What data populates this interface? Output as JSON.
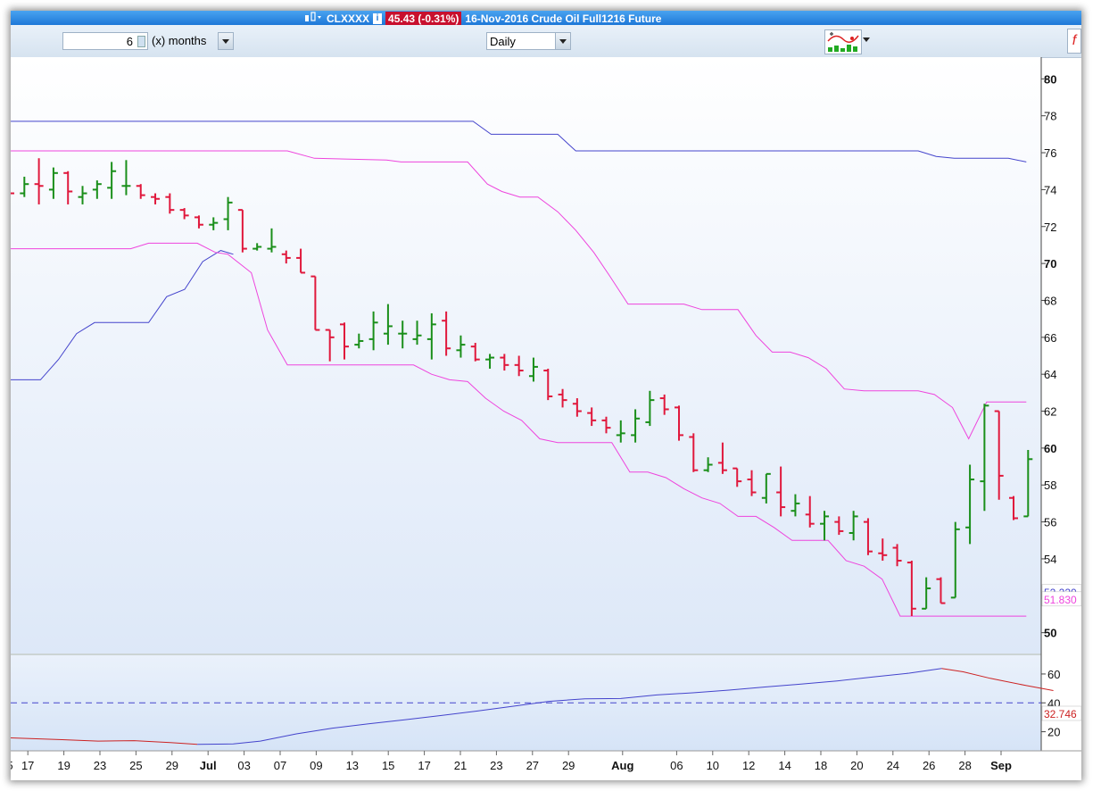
{
  "titlebar": {
    "symbol": "CLXXXX",
    "price_change": "45.43 (-0.31%)",
    "description": "16-Nov-2016 Crude Oil Full1216 Future"
  },
  "toolbar": {
    "period_value": "6",
    "period_unit": "(x) months",
    "interval": "Daily"
  },
  "colors": {
    "up": "#1a8f1a",
    "down": "#e0183c",
    "magenta": "#ee44dd",
    "blue": "#4444cc",
    "red_line": "#cc2222",
    "bg_top": "#ffffff",
    "bg_bottom": "#dde8f8"
  },
  "chart_data": [
    {
      "type": "ohlc",
      "y_ticks": [
        "80",
        "78",
        "76",
        "74",
        "72",
        "70",
        "68",
        "66",
        "64",
        "62",
        "60",
        "58",
        "56",
        "54",
        "50"
      ],
      "bold_ticks": [
        "80",
        "70",
        "60",
        "50"
      ],
      "ylim": [
        49.5,
        80.5
      ],
      "x_ticks": [
        {
          "label": "5",
          "i": 0
        },
        {
          "label": "17",
          "i": 1
        },
        {
          "label": "19",
          "i": 3
        },
        {
          "label": "23",
          "i": 5
        },
        {
          "label": "25",
          "i": 7
        },
        {
          "label": "29",
          "i": 9
        },
        {
          "label": "Jul",
          "i": 11,
          "bold": true
        },
        {
          "label": "03",
          "i": 13
        },
        {
          "label": "07",
          "i": 15
        },
        {
          "label": "09",
          "i": 17
        },
        {
          "label": "13",
          "i": 19
        },
        {
          "label": "15",
          "i": 21
        },
        {
          "label": "17",
          "i": 23
        },
        {
          "label": "21",
          "i": 25
        },
        {
          "label": "23",
          "i": 27
        },
        {
          "label": "27",
          "i": 29
        },
        {
          "label": "29",
          "i": 31
        },
        {
          "label": "Aug",
          "i": 34,
          "bold": true
        },
        {
          "label": "06",
          "i": 37
        },
        {
          "label": "10",
          "i": 39
        },
        {
          "label": "12",
          "i": 41
        },
        {
          "label": "14",
          "i": 43
        },
        {
          "label": "18",
          "i": 45
        },
        {
          "label": "20",
          "i": 47
        },
        {
          "label": "24",
          "i": 49
        },
        {
          "label": "26",
          "i": 51
        },
        {
          "label": "28",
          "i": 53
        },
        {
          "label": "Sep",
          "i": 55,
          "bold": true
        }
      ],
      "bars": [
        {
          "o": 73.9,
          "h": 74.1,
          "l": 73.7,
          "c": 73.8
        },
        {
          "o": 73.8,
          "h": 74.7,
          "l": 73.6,
          "c": 74.3
        },
        {
          "o": 74.3,
          "h": 75.7,
          "l": 73.2,
          "c": 74.2
        },
        {
          "o": 74.0,
          "h": 75.2,
          "l": 73.5,
          "c": 74.9
        },
        {
          "o": 74.9,
          "h": 75.0,
          "l": 73.2,
          "c": 73.9
        },
        {
          "o": 73.6,
          "h": 74.2,
          "l": 73.2,
          "c": 73.8
        },
        {
          "o": 74.0,
          "h": 74.5,
          "l": 73.5,
          "c": 74.3
        },
        {
          "o": 74.1,
          "h": 75.5,
          "l": 73.5,
          "c": 75.0
        },
        {
          "o": 74.2,
          "h": 75.6,
          "l": 73.7,
          "c": 74.2
        },
        {
          "o": 74.2,
          "h": 74.3,
          "l": 73.5,
          "c": 73.7
        },
        {
          "o": 73.6,
          "h": 73.8,
          "l": 73.2,
          "c": 73.5
        },
        {
          "o": 73.6,
          "h": 73.8,
          "l": 72.7,
          "c": 72.9
        },
        {
          "o": 72.9,
          "h": 73.0,
          "l": 72.4,
          "c": 72.6
        },
        {
          "o": 72.5,
          "h": 72.6,
          "l": 71.9,
          "c": 72.1
        },
        {
          "o": 72.1,
          "h": 72.5,
          "l": 71.8,
          "c": 72.2
        },
        {
          "o": 72.4,
          "h": 73.6,
          "l": 71.8,
          "c": 73.3
        },
        {
          "o": 72.9,
          "h": 72.9,
          "l": 70.6,
          "c": 70.8
        },
        {
          "o": 70.8,
          "h": 71.1,
          "l": 70.7,
          "c": 70.9
        },
        {
          "o": 70.8,
          "h": 71.9,
          "l": 70.6,
          "c": 70.9
        },
        {
          "o": 70.5,
          "h": 70.7,
          "l": 70.0,
          "c": 70.3
        },
        {
          "o": 70.3,
          "h": 70.8,
          "l": 69.5,
          "c": 69.5
        },
        {
          "o": 69.3,
          "h": 69.3,
          "l": 66.4,
          "c": 66.4
        },
        {
          "o": 66.4,
          "h": 66.4,
          "l": 64.7,
          "c": 66.0
        },
        {
          "o": 66.7,
          "h": 66.8,
          "l": 64.8,
          "c": 65.5
        },
        {
          "o": 65.6,
          "h": 66.2,
          "l": 65.4,
          "c": 65.8
        },
        {
          "o": 65.9,
          "h": 67.4,
          "l": 65.3,
          "c": 66.8
        },
        {
          "o": 66.2,
          "h": 67.8,
          "l": 65.6,
          "c": 66.6
        },
        {
          "o": 66.2,
          "h": 66.9,
          "l": 65.4,
          "c": 66.2
        },
        {
          "o": 65.9,
          "h": 66.9,
          "l": 65.6,
          "c": 66.1
        },
        {
          "o": 65.9,
          "h": 67.3,
          "l": 64.8,
          "c": 66.7
        },
        {
          "o": 66.9,
          "h": 67.4,
          "l": 65.0,
          "c": 65.4
        },
        {
          "o": 65.3,
          "h": 66.1,
          "l": 64.9,
          "c": 65.6
        },
        {
          "o": 65.5,
          "h": 65.7,
          "l": 64.7,
          "c": 64.8
        },
        {
          "o": 64.8,
          "h": 65.1,
          "l": 64.3,
          "c": 64.9
        },
        {
          "o": 64.9,
          "h": 65.1,
          "l": 64.2,
          "c": 64.5
        },
        {
          "o": 64.5,
          "h": 65.0,
          "l": 63.9,
          "c": 64.2
        }
      ],
      "bars2": [
        {
          "o": 63.9,
          "h": 64.9,
          "l": 63.6,
          "c": 64.4
        },
        {
          "o": 64.2,
          "h": 64.3,
          "l": 62.6,
          "c": 62.8
        },
        {
          "o": 62.9,
          "h": 63.2,
          "l": 62.2,
          "c": 62.6
        },
        {
          "o": 62.4,
          "h": 62.7,
          "l": 61.7,
          "c": 62.0
        },
        {
          "o": 61.9,
          "h": 62.2,
          "l": 61.2,
          "c": 61.5
        },
        {
          "o": 61.5,
          "h": 61.7,
          "l": 60.8,
          "c": 61.1
        },
        {
          "o": 60.7,
          "h": 61.5,
          "l": 60.3,
          "c": 60.8
        },
        {
          "o": 60.7,
          "h": 62.1,
          "l": 60.3,
          "c": 61.6
        },
        {
          "o": 61.4,
          "h": 63.1,
          "l": 61.2,
          "c": 62.6
        },
        {
          "o": 62.7,
          "h": 62.9,
          "l": 61.8,
          "c": 62.1
        },
        {
          "o": 62.2,
          "h": 62.3,
          "l": 60.4,
          "c": 60.7
        },
        {
          "o": 60.6,
          "h": 60.8,
          "l": 58.7,
          "c": 58.8
        },
        {
          "o": 58.8,
          "h": 59.5,
          "l": 58.7,
          "c": 59.1
        },
        {
          "o": 59.2,
          "h": 60.3,
          "l": 58.6,
          "c": 58.8
        },
        {
          "o": 58.9,
          "h": 58.9,
          "l": 57.9,
          "c": 58.2
        },
        {
          "o": 58.3,
          "h": 58.8,
          "l": 57.4,
          "c": 57.6
        },
        {
          "o": 57.3,
          "h": 58.6,
          "l": 57.0,
          "c": 58.6
        },
        {
          "o": 57.6,
          "h": 59.0,
          "l": 56.3,
          "c": 56.8
        },
        {
          "o": 56.6,
          "h": 57.5,
          "l": 56.3,
          "c": 57.0
        },
        {
          "o": 56.4,
          "h": 57.4,
          "l": 55.7,
          "c": 55.9
        },
        {
          "o": 55.9,
          "h": 56.6,
          "l": 55.0,
          "c": 56.3
        },
        {
          "o": 56.0,
          "h": 56.3,
          "l": 55.3,
          "c": 55.5
        },
        {
          "o": 55.4,
          "h": 56.6,
          "l": 55.0,
          "c": 56.3
        },
        {
          "o": 56.0,
          "h": 56.2,
          "l": 54.2,
          "c": 54.4
        },
        {
          "o": 54.3,
          "h": 55.1,
          "l": 53.9,
          "c": 54.2
        },
        {
          "o": 54.6,
          "h": 54.8,
          "l": 53.6,
          "c": 53.9
        },
        {
          "o": 53.8,
          "h": 53.9,
          "l": 50.9,
          "c": 51.3
        },
        {
          "o": 51.3,
          "h": 53.0,
          "l": 51.3,
          "c": 52.4
        },
        {
          "o": 52.9,
          "h": 53.0,
          "l": 51.6,
          "c": 51.6
        },
        {
          "o": 51.9,
          "h": 56.0,
          "l": 51.9,
          "c": 55.6
        },
        {
          "o": 55.7,
          "h": 59.1,
          "l": 54.8,
          "c": 58.3
        },
        {
          "o": 58.2,
          "h": 62.4,
          "l": 56.6,
          "c": 62.3
        },
        {
          "o": 62.0,
          "h": 62.0,
          "l": 57.2,
          "c": 58.5
        },
        {
          "o": 57.3,
          "h": 57.4,
          "l": 56.1,
          "c": 56.2
        },
        {
          "o": 56.3,
          "h": 59.9,
          "l": 56.3,
          "c": 59.4
        }
      ],
      "channel_outer_high": [
        77.7,
        77.7,
        77.7,
        77.7,
        77.7,
        77.7,
        77.7,
        77.7,
        77.7,
        77.7,
        77.7,
        77.7,
        77.7,
        77.7,
        77.7,
        77.7,
        77.7,
        77.7,
        77.7,
        77.7,
        77.7,
        77.7,
        77.7,
        77.7,
        77.7,
        77.7,
        77.7,
        77.7,
        77.7,
        77.7,
        77.7,
        77.7,
        77.7,
        77.7,
        77.7,
        77.7,
        77.7,
        77.7,
        77.7,
        77.7,
        77.7,
        77.7,
        77.7,
        77.7,
        77.7,
        77.7,
        77.7,
        77.7,
        77.7,
        77.7,
        77.7,
        77.7,
        77.7,
        77.7,
        77.7,
        77.7,
        77.7,
        77.7,
        77.7,
        77.7,
        77.7,
        77.7,
        77.7,
        77.7,
        77.7,
        77.7,
        77.7,
        77.7,
        77.7,
        77.7,
        77.7
      ],
      "outer_high_line": [
        [
          0,
          77.7
        ],
        [
          25.8,
          77.7
        ],
        [
          26.8,
          77.0
        ],
        [
          30.5,
          77.0
        ],
        [
          31.5,
          76.1
        ],
        [
          50.5,
          76.1
        ],
        [
          51.5,
          75.8
        ],
        [
          52.5,
          75.7
        ],
        [
          55.5,
          75.7
        ],
        [
          56.5,
          75.5
        ]
      ],
      "inner_high_line": [
        [
          0,
          76.1
        ],
        [
          15.5,
          76.1
        ],
        [
          17,
          75.7
        ],
        [
          21,
          75.6
        ],
        [
          21.8,
          75.5
        ],
        [
          25.5,
          75.5
        ],
        [
          26.6,
          74.3
        ],
        [
          27.4,
          73.9
        ],
        [
          28.4,
          73.6
        ],
        [
          29.4,
          73.6
        ],
        [
          30.5,
          72.8
        ],
        [
          31.5,
          71.8
        ],
        [
          32.5,
          70.6
        ],
        [
          33.4,
          69.3
        ],
        [
          34.4,
          67.8
        ],
        [
          37.5,
          67.8
        ],
        [
          38.5,
          67.5
        ],
        [
          40.5,
          67.5
        ],
        [
          41.5,
          66.1
        ],
        [
          42.4,
          65.2
        ],
        [
          43.4,
          65.2
        ],
        [
          44.4,
          64.9
        ],
        [
          45.4,
          64.3
        ],
        [
          46.4,
          63.2
        ],
        [
          47.5,
          63.1
        ],
        [
          50.5,
          63.1
        ],
        [
          51.4,
          62.9
        ],
        [
          52.4,
          62.2
        ],
        [
          53.3,
          60.5
        ],
        [
          54.3,
          62.5
        ],
        [
          56.5,
          62.5
        ]
      ],
      "inner_low_line": [
        [
          0,
          70.8
        ],
        [
          6.8,
          70.8
        ],
        [
          7.8,
          71.1
        ],
        [
          10.5,
          71.1
        ],
        [
          11.5,
          70.6
        ],
        [
          12.2,
          70.5
        ],
        [
          13.5,
          69.5
        ],
        [
          14.4,
          66.4
        ],
        [
          15.5,
          64.5
        ],
        [
          22.5,
          64.5
        ],
        [
          23.5,
          64.0
        ],
        [
          24.5,
          63.7
        ],
        [
          25.5,
          63.6
        ],
        [
          26.5,
          62.7
        ],
        [
          27.5,
          62.0
        ],
        [
          28.5,
          61.5
        ],
        [
          29.5,
          60.5
        ],
        [
          30.5,
          60.3
        ],
        [
          33.5,
          60.3
        ],
        [
          34.5,
          58.7
        ],
        [
          35.5,
          58.7
        ],
        [
          36.5,
          58.4
        ],
        [
          37.5,
          57.8
        ],
        [
          38.5,
          57.3
        ],
        [
          39.5,
          57.0
        ],
        [
          40.5,
          56.3
        ],
        [
          41.5,
          56.3
        ],
        [
          42.5,
          55.7
        ],
        [
          43.5,
          55.0
        ],
        [
          45.5,
          55.0
        ],
        [
          46.5,
          53.9
        ],
        [
          47.5,
          53.6
        ],
        [
          48.5,
          52.9
        ],
        [
          49.5,
          50.9
        ],
        [
          56.5,
          50.9
        ]
      ],
      "outer_low_line": [
        [
          0,
          63.7
        ],
        [
          1.8,
          63.7
        ],
        [
          2.8,
          64.8
        ],
        [
          3.8,
          66.2
        ],
        [
          4.8,
          66.8
        ],
        [
          7.8,
          66.8
        ],
        [
          8.8,
          68.2
        ],
        [
          9.8,
          68.6
        ],
        [
          10.8,
          70.1
        ],
        [
          11.8,
          70.7
        ],
        [
          12.5,
          70.5
        ]
      ],
      "right_labels": [
        {
          "text": "52.220",
          "value": 52.22,
          "color": "#4444cc"
        },
        {
          "text": "51.830",
          "value": 51.83,
          "color": "#ee44dd"
        }
      ]
    },
    {
      "type": "line",
      "y_ticks": [
        "60",
        "40",
        "20"
      ],
      "ylim": [
        8,
        68
      ],
      "reference": 40,
      "right_label": {
        "text": "32.746",
        "value": 32.746
      },
      "line": [
        [
          0,
          15.8
        ],
        [
          3,
          14.5
        ],
        [
          5,
          13.5
        ],
        [
          7,
          13.8
        ],
        [
          9,
          12.5
        ],
        [
          10.5,
          11.2
        ],
        [
          12.5,
          11.5
        ],
        [
          14,
          13.5
        ],
        [
          16,
          18.5
        ],
        [
          18,
          22.5
        ],
        [
          20,
          25.5
        ],
        [
          22,
          28.3
        ],
        [
          24,
          31.2
        ],
        [
          26,
          34.3
        ],
        [
          28,
          37.6
        ],
        [
          30,
          41.0
        ],
        [
          32,
          42.8
        ],
        [
          34,
          43.0
        ],
        [
          36,
          45.5
        ],
        [
          38,
          47.0
        ],
        [
          40,
          48.8
        ],
        [
          42,
          51.0
        ],
        [
          44,
          53.0
        ],
        [
          46,
          55.2
        ],
        [
          48,
          58.0
        ],
        [
          50,
          60.6
        ],
        [
          51.8,
          63.8
        ],
        [
          53,
          61.5
        ],
        [
          54.5,
          57.0
        ],
        [
          56.5,
          52.0
        ],
        [
          58,
          48.5
        ]
      ],
      "peak_index_break": 51.8
    }
  ]
}
